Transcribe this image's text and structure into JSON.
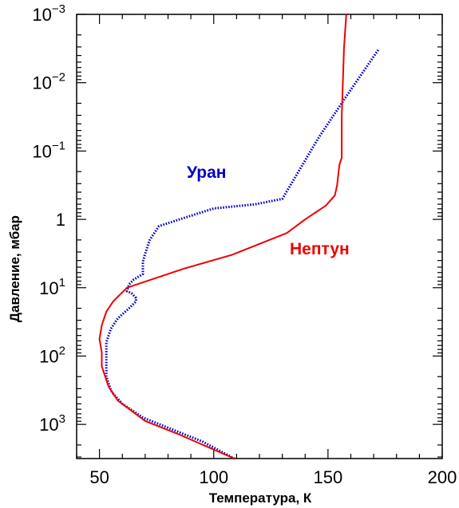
{
  "chart_data": {
    "type": "line",
    "xlabel": "Температура, К",
    "ylabel": "Давление, мбар",
    "xlim": [
      40,
      200
    ],
    "ylim_log10": [
      -3,
      3.5
    ],
    "y_scale": "log",
    "y_inverted": true,
    "x_ticks": [
      {
        "value": 50,
        "label": "50"
      },
      {
        "value": 100,
        "label": "100"
      },
      {
        "value": 150,
        "label": "150"
      },
      {
        "value": 200,
        "label": "200"
      }
    ],
    "y_ticks": [
      {
        "log": -3,
        "base": "10",
        "exp": "−3"
      },
      {
        "log": -2,
        "base": "10",
        "exp": "−2"
      },
      {
        "log": -1,
        "base": "10",
        "exp": "−1"
      },
      {
        "log": 0,
        "base": "1",
        "exp": ""
      },
      {
        "log": 1,
        "base": "10",
        "exp": "1"
      },
      {
        "log": 2,
        "base": "10",
        "exp": "2"
      },
      {
        "log": 3,
        "base": "10",
        "exp": "3"
      }
    ],
    "series": [
      {
        "name": "Уран",
        "color": "#0000cc",
        "style": "dotted",
        "points": [
          [
            172,
            -2.48
          ],
          [
            158,
            -1.8
          ],
          [
            146,
            -1.2
          ],
          [
            130,
            -0.3
          ],
          [
            118,
            -0.22
          ],
          [
            100,
            -0.16
          ],
          [
            85,
            0.0
          ],
          [
            76,
            0.1
          ],
          [
            72,
            0.3
          ],
          [
            70,
            0.5
          ],
          [
            69,
            0.62
          ],
          [
            69,
            0.8
          ],
          [
            65,
            0.88
          ],
          [
            63,
            0.95
          ],
          [
            62,
            1.05
          ],
          [
            64,
            1.08
          ],
          [
            66,
            1.15
          ],
          [
            66,
            1.2
          ],
          [
            63,
            1.3
          ],
          [
            58,
            1.45
          ],
          [
            55,
            1.6
          ],
          [
            53,
            1.8
          ],
          [
            53,
            2.0
          ],
          [
            53,
            2.3
          ],
          [
            55,
            2.5
          ],
          [
            56,
            2.55
          ],
          [
            60,
            2.7
          ],
          [
            69,
            2.9
          ],
          [
            80,
            3.05
          ],
          [
            95,
            3.25
          ],
          [
            109,
            3.5
          ]
        ]
      },
      {
        "name": "Нептун",
        "color": "#ee0000",
        "style": "solid",
        "points": [
          [
            158,
            -3.0
          ],
          [
            157,
            -2.5
          ],
          [
            156,
            -1.5
          ],
          [
            156,
            -0.9
          ],
          [
            155,
            -0.8
          ],
          [
            154,
            -0.5
          ],
          [
            153,
            -0.35
          ],
          [
            149,
            -0.2
          ],
          [
            140,
            0.0
          ],
          [
            132,
            0.2
          ],
          [
            108,
            0.52
          ],
          [
            87,
            0.72
          ],
          [
            62,
            1.0
          ],
          [
            59,
            1.1
          ],
          [
            56,
            1.2
          ],
          [
            53,
            1.35
          ],
          [
            51,
            1.55
          ],
          [
            50,
            1.75
          ],
          [
            51,
            1.95
          ],
          [
            51,
            2.15
          ],
          [
            54,
            2.45
          ],
          [
            58,
            2.65
          ],
          [
            70,
            2.95
          ],
          [
            85,
            3.15
          ],
          [
            109,
            3.5
          ]
        ]
      }
    ],
    "annotations": [
      {
        "text": "Уран",
        "series": "Уран",
        "color": "#0000cc"
      },
      {
        "text": "Нептун",
        "series": "Нептун",
        "color": "#ee0000"
      }
    ]
  }
}
